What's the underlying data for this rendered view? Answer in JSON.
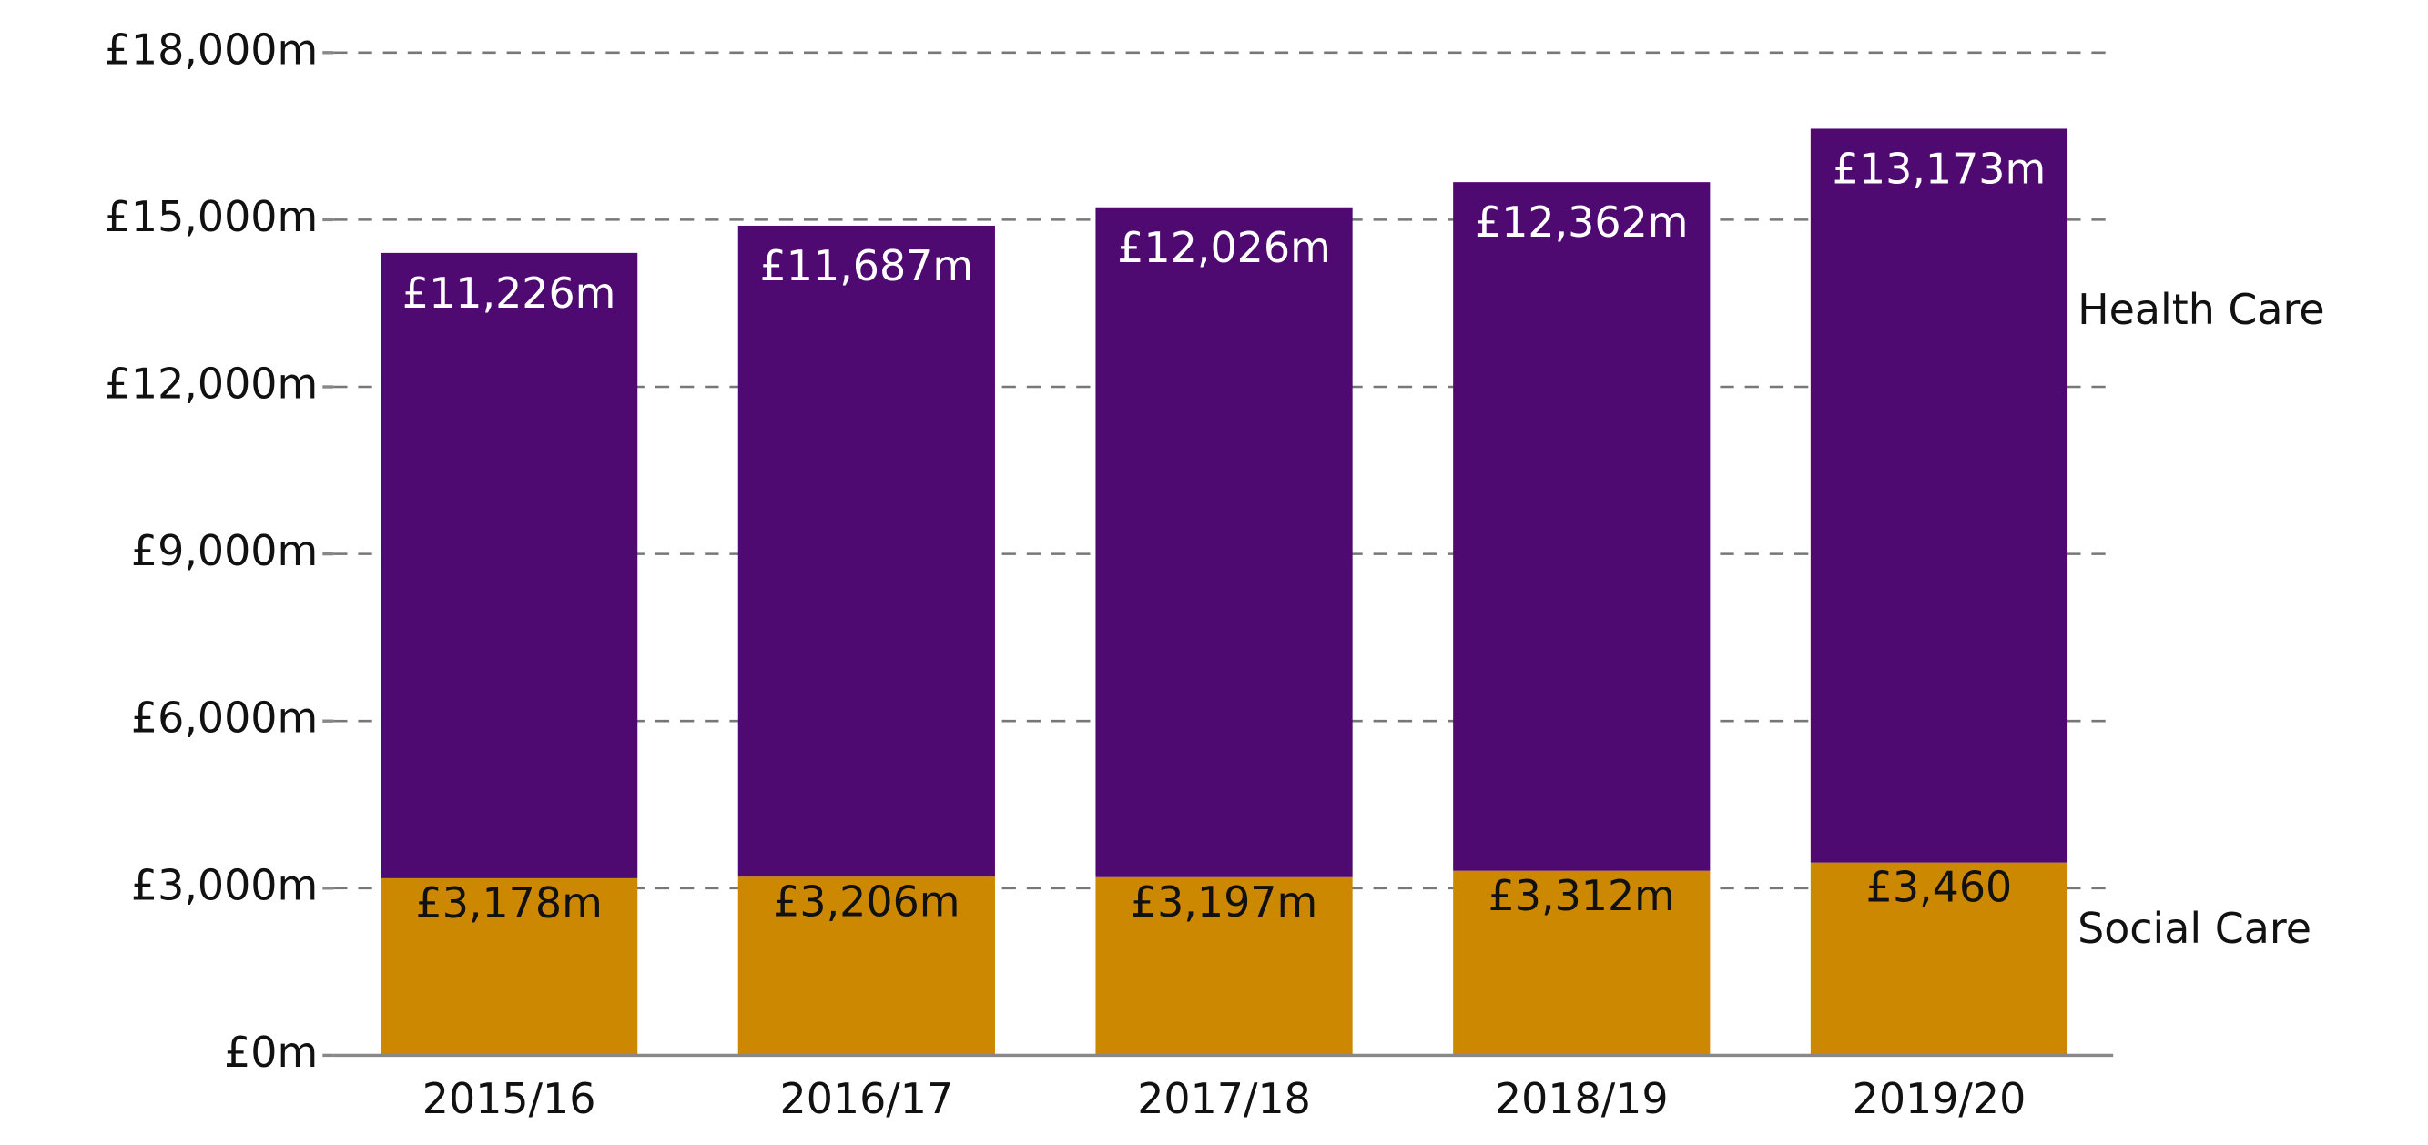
{
  "chart_data": {
    "type": "stacked-bar",
    "categories": [
      "2015/16",
      "2016/17",
      "2017/18",
      "2018/19",
      "2019/20"
    ],
    "series": [
      {
        "name": "Social Care",
        "color": "#cc8800",
        "values": [
          3178,
          3206,
          3197,
          3312,
          3460
        ],
        "value_labels": [
          "£3,178m",
          "£3,206m",
          "£3,197m",
          "£3,312m",
          "£3,460"
        ]
      },
      {
        "name": "Health Care",
        "color": "#4f0a72",
        "values": [
          11226,
          11687,
          12026,
          12362,
          13173
        ],
        "value_labels": [
          "£11,226m",
          "£11,687m",
          "£12,026m",
          "£12,362m",
          "£13,173m"
        ]
      }
    ],
    "ylim": [
      0,
      18000
    ],
    "yticks": [
      {
        "value": 0,
        "label": "£0m"
      },
      {
        "value": 3000,
        "label": "£3,000m"
      },
      {
        "value": 6000,
        "label": "£6,000m"
      },
      {
        "value": 9000,
        "label": "£9,000m"
      },
      {
        "value": 12000,
        "label": "£12,000m"
      },
      {
        "value": 15000,
        "label": "£15,000m"
      },
      {
        "value": 18000,
        "label": "£18,000m"
      }
    ],
    "grid": true,
    "legend": "right"
  }
}
